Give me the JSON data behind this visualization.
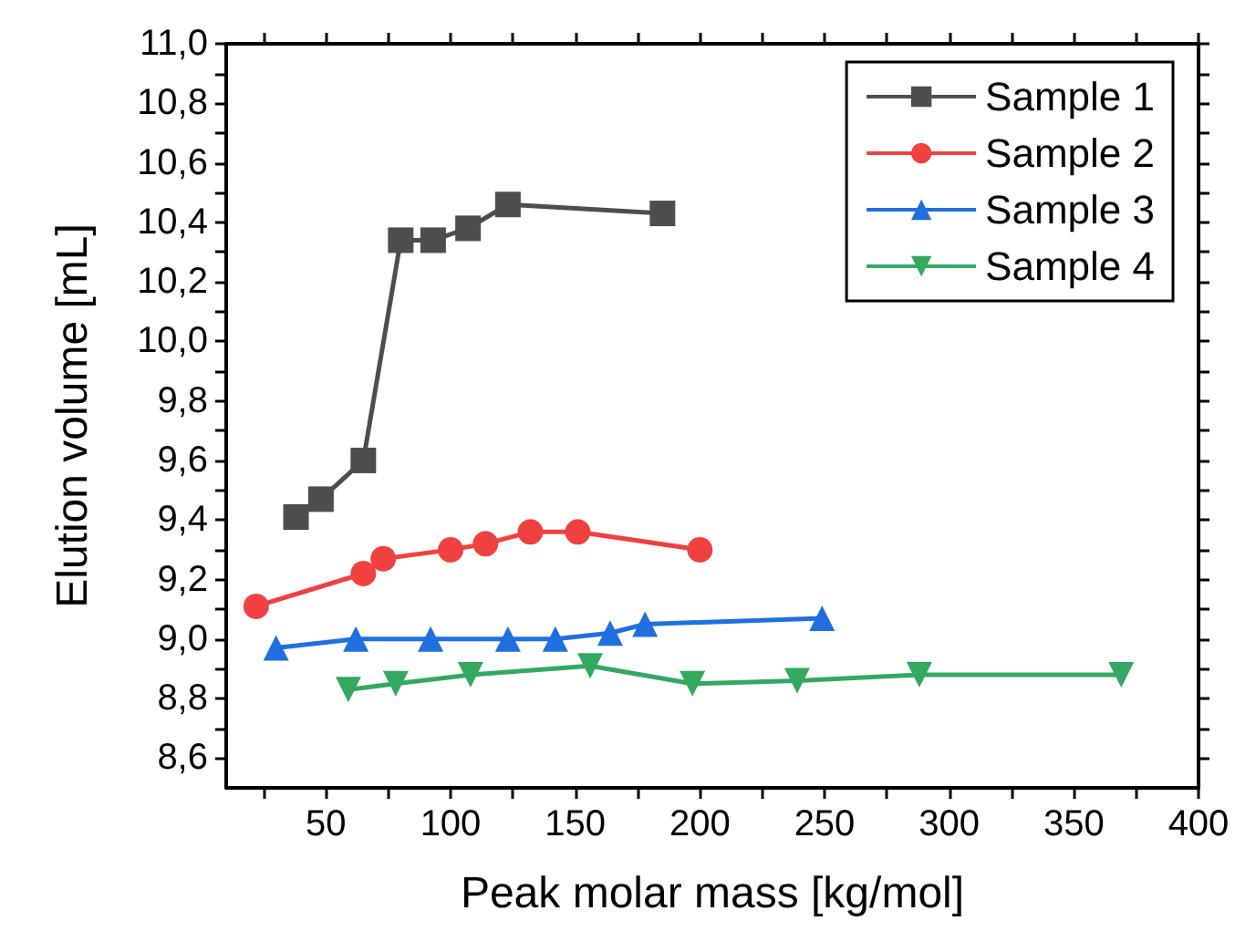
{
  "chart_data": {
    "type": "line",
    "xlabel": "Peak molar mass [kg/mol]",
    "ylabel": "Elution volume [mL]",
    "xlim": [
      10,
      400
    ],
    "ylim": [
      8.5,
      11.0
    ],
    "xticks": [
      {
        "value": 25,
        "label": null
      },
      50,
      {
        "value": 75,
        "label": null
      },
      100,
      {
        "value": 125,
        "label": null
      },
      150,
      {
        "value": 175,
        "label": null
      },
      200,
      {
        "value": 225,
        "label": null
      },
      250,
      {
        "value": 275,
        "label": null
      },
      300,
      {
        "value": 325,
        "label": null
      },
      350,
      {
        "value": 375,
        "label": null
      },
      400
    ],
    "yticks": [
      {
        "value": 8.6,
        "label": "8,6"
      },
      {
        "value": 8.7,
        "label": null
      },
      {
        "value": 8.8,
        "label": "8,8"
      },
      {
        "value": 8.9,
        "label": null
      },
      {
        "value": 9.0,
        "label": "9,0"
      },
      {
        "value": 9.1,
        "label": null
      },
      {
        "value": 9.2,
        "label": "9,2"
      },
      {
        "value": 9.3,
        "label": null
      },
      {
        "value": 9.4,
        "label": "9,4"
      },
      {
        "value": 9.5,
        "label": null
      },
      {
        "value": 9.6,
        "label": "9,6"
      },
      {
        "value": 9.7,
        "label": null
      },
      {
        "value": 9.8,
        "label": "9,8"
      },
      {
        "value": 9.9,
        "label": null
      },
      {
        "value": 10.0,
        "label": "10,0"
      },
      {
        "value": 10.1,
        "label": null
      },
      {
        "value": 10.2,
        "label": "10,2"
      },
      {
        "value": 10.3,
        "label": null
      },
      {
        "value": 10.4,
        "label": "10,4"
      },
      {
        "value": 10.5,
        "label": null
      },
      {
        "value": 10.6,
        "label": "10,6"
      },
      {
        "value": 10.7,
        "label": null
      },
      {
        "value": 10.8,
        "label": "10,8"
      },
      {
        "value": 10.9,
        "label": null
      },
      {
        "value": 11.0,
        "label": "11,0"
      }
    ],
    "legend": "top right",
    "grid": false,
    "line_style": "solid",
    "series": [
      {
        "name": "Sample 1",
        "color": "#4d4d4d",
        "marker": "square",
        "x": [
          38,
          48,
          65,
          80,
          93,
          107,
          123,
          185
        ],
        "values": [
          9.41,
          9.47,
          9.6,
          10.34,
          10.34,
          10.38,
          10.46,
          10.43
        ]
      },
      {
        "name": "Sample 2",
        "color": "#f04040",
        "marker": "circle",
        "x": [
          22,
          65,
          73,
          100,
          114,
          132,
          151,
          200
        ],
        "values": [
          9.11,
          9.22,
          9.27,
          9.3,
          9.32,
          9.36,
          9.36,
          9.3
        ]
      },
      {
        "name": "Sample 3",
        "color": "#1f6fe0",
        "marker": "triangle",
        "x": [
          30,
          62,
          92,
          123,
          142,
          164,
          178,
          249
        ],
        "values": [
          8.97,
          9.0,
          9.0,
          9.0,
          9.0,
          9.02,
          9.05,
          9.07
        ]
      },
      {
        "name": "Sample 4",
        "color": "#33a860",
        "marker": "triangle_down",
        "x": [
          59,
          78,
          108,
          156,
          197,
          239,
          288,
          369
        ],
        "values": [
          8.83,
          8.85,
          8.88,
          8.91,
          8.85,
          8.86,
          8.88,
          8.88
        ]
      }
    ]
  }
}
